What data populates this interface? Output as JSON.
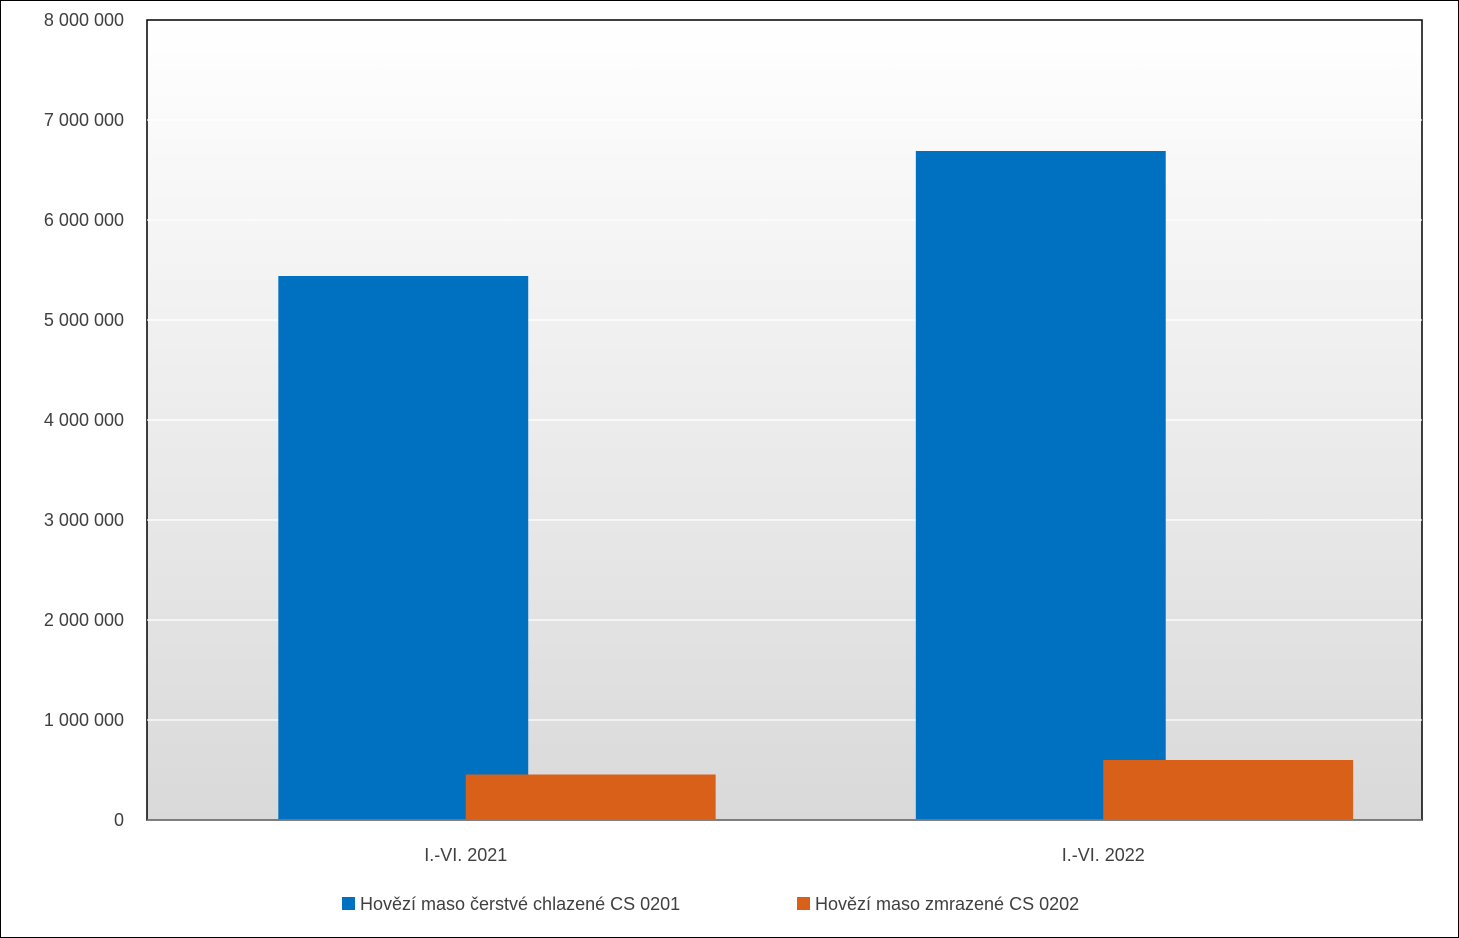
{
  "chart_data": {
    "type": "bar",
    "categories": [
      "I.-VI. 2021",
      "I.-VI. 2022"
    ],
    "series": [
      {
        "name": "Hovězí maso čerstvé chlazené CS 0201",
        "values": [
          5440000,
          6690000
        ],
        "color": "#0070C0"
      },
      {
        "name": "Hovězí maso zmrazené CS 0202",
        "values": [
          455000,
          600000
        ],
        "color": "#D86018"
      }
    ],
    "ylim": [
      0,
      8000000
    ],
    "yticks": [
      0,
      1000000,
      2000000,
      3000000,
      4000000,
      5000000,
      6000000,
      7000000,
      8000000
    ],
    "ytick_labels": [
      "0",
      "1 000 000",
      "2 000 000",
      "3 000 000",
      "4 000 000",
      "5 000 000",
      "6 000 000",
      "7 000 000",
      "8 000 000"
    ],
    "grid": true,
    "legend_position": "bottom",
    "plot_background": [
      "#ffffff",
      "#d9d9d9"
    ]
  }
}
